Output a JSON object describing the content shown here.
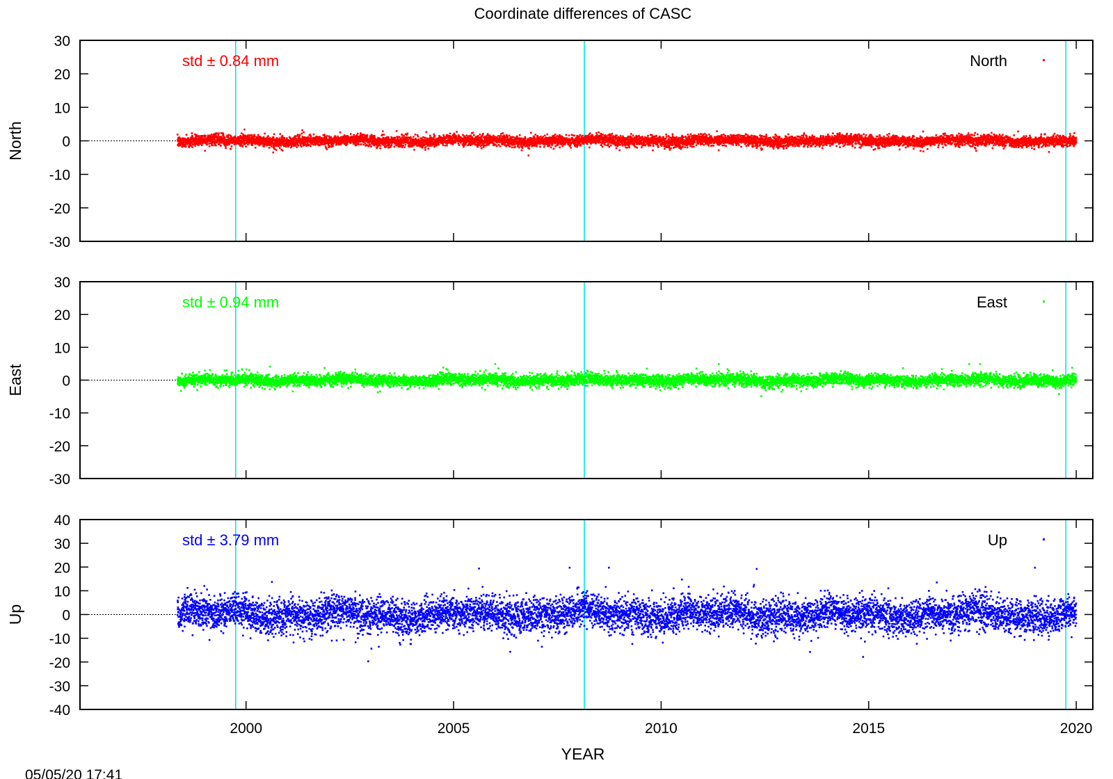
{
  "title": "Coordinate differences of CASC",
  "xlabel": "YEAR",
  "timestamp": "05/05/20 17:41",
  "chart_data": {
    "type": "scatter",
    "x_range": [
      1996,
      2020.4
    ],
    "x_ticks": [
      2000,
      2005,
      2010,
      2015,
      2020
    ],
    "vertical_lines": [
      1999.75,
      2008.15,
      2019.75
    ],
    "vertical_line_color": "#00e5ee",
    "data_start": 1998.35,
    "data_end": 2020.0,
    "panels": [
      {
        "name": "North",
        "ylabel": "North",
        "legend": "North",
        "std_label": "std ± 0.84 mm",
        "color": "#ff0000",
        "ylim": [
          -30,
          30
        ],
        "yticks": [
          -30,
          -20,
          -10,
          0,
          10,
          20,
          30
        ],
        "noise_sd": 0.84
      },
      {
        "name": "East",
        "ylabel": "East",
        "legend": "East",
        "std_label": "std ± 0.94 mm",
        "color": "#00ff00",
        "ylim": [
          -30,
          30
        ],
        "yticks": [
          -30,
          -20,
          -10,
          0,
          10,
          20,
          30
        ],
        "noise_sd": 0.94
      },
      {
        "name": "Up",
        "ylabel": "Up",
        "legend": "Up",
        "std_label": "std ± 3.79 mm",
        "color": "#0000ff",
        "ylim": [
          -40,
          40
        ],
        "yticks": [
          -40,
          -30,
          -20,
          -10,
          0,
          10,
          20,
          30,
          40
        ],
        "noise_sd": 3.79
      }
    ]
  }
}
